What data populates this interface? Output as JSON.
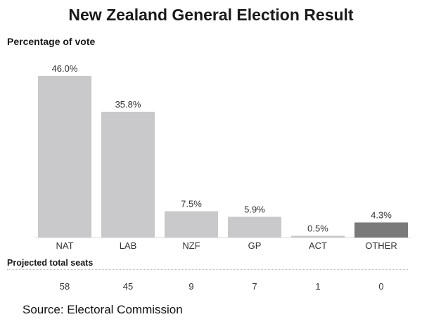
{
  "chart_data": {
    "type": "bar",
    "title": "New Zealand General Election Result",
    "subtitle": "Percentage of vote",
    "categories": [
      "NAT",
      "LAB",
      "NZF",
      "GP",
      "ACT",
      "OTHER"
    ],
    "values": [
      46.0,
      35.8,
      7.5,
      5.9,
      0.5,
      4.3
    ],
    "value_labels": [
      "46.0%",
      "35.8%",
      "7.5%",
      "5.9%",
      "0.5%",
      "4.3%"
    ],
    "bar_colors": [
      "#c9c8ca",
      "#c9c8ca",
      "#c9c8ca",
      "#c9c8ca",
      "#c9c8ca",
      "#7a7a7a"
    ],
    "ylim": [
      0,
      46.0
    ],
    "grid": false,
    "legend": "none"
  },
  "seats": {
    "heading": "Projected total seats",
    "values": [
      "58",
      "45",
      "9",
      "7",
      "1",
      "0"
    ]
  },
  "source": "Source: Electoral Commission"
}
